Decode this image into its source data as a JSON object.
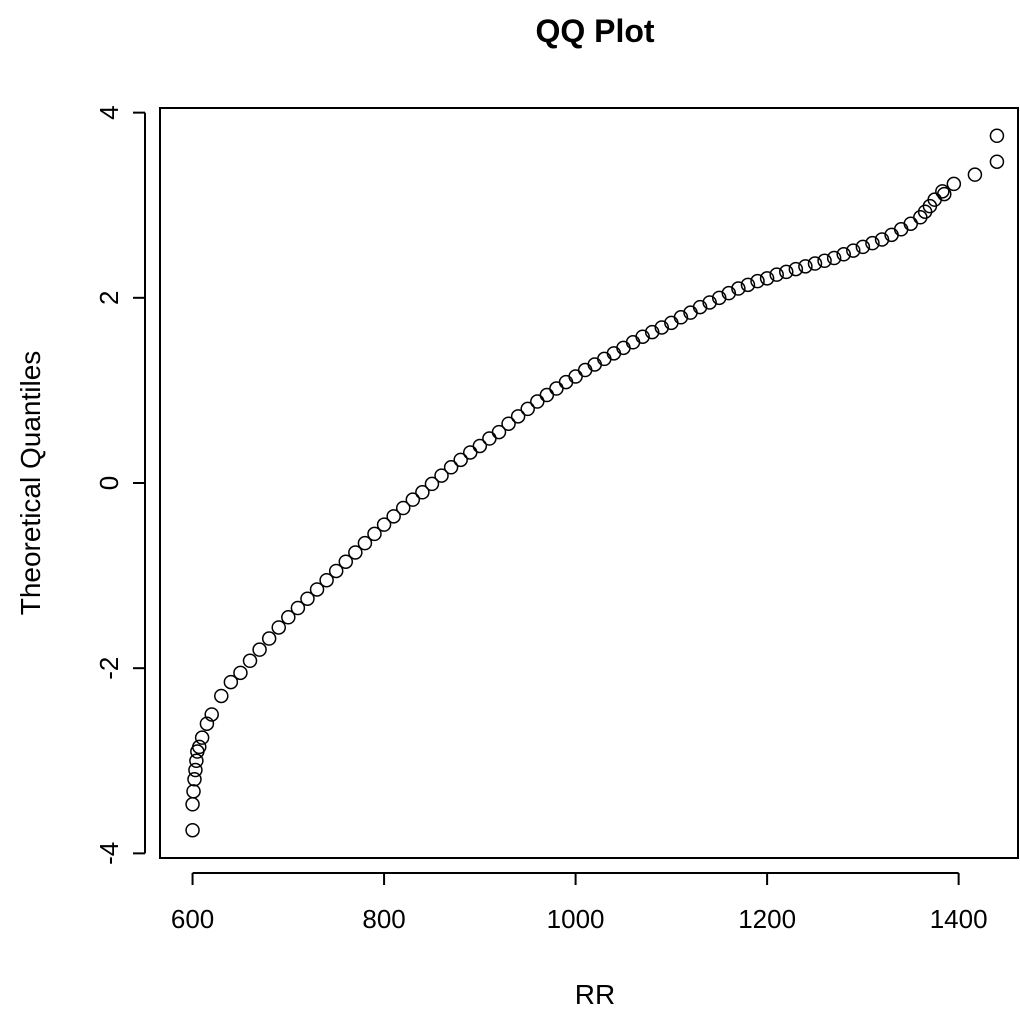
{
  "chart_data": {
    "type": "scatter",
    "title": "QQ Plot",
    "x_label": "RR",
    "y_label": "Theoretical Quantiles",
    "color": "#000000",
    "x": [
      600,
      600,
      601,
      602,
      603,
      604,
      605,
      607,
      610,
      615,
      620,
      630,
      640,
      650,
      660,
      670,
      680,
      690,
      700,
      710,
      720,
      730,
      740,
      750,
      760,
      770,
      780,
      790,
      800,
      810,
      820,
      830,
      840,
      850,
      860,
      870,
      880,
      890,
      900,
      910,
      920,
      930,
      940,
      950,
      960,
      970,
      980,
      990,
      1000,
      1010,
      1020,
      1030,
      1040,
      1050,
      1060,
      1070,
      1080,
      1090,
      1100,
      1110,
      1120,
      1130,
      1140,
      1150,
      1160,
      1170,
      1180,
      1190,
      1200,
      1210,
      1220,
      1230,
      1240,
      1250,
      1260,
      1270,
      1280,
      1290,
      1300,
      1310,
      1320,
      1330,
      1340,
      1350,
      1360,
      1365,
      1370,
      1375,
      1383,
      1385,
      1395,
      1417,
      1440,
      1440
    ],
    "y": [
      -3.75,
      -3.47,
      -3.33,
      -3.2,
      -3.1,
      -3.0,
      -2.9,
      -2.85,
      -2.75,
      -2.6,
      -2.5,
      -2.3,
      -2.15,
      -2.05,
      -1.92,
      -1.8,
      -1.68,
      -1.56,
      -1.45,
      -1.35,
      -1.25,
      -1.15,
      -1.05,
      -0.95,
      -0.85,
      -0.75,
      -0.65,
      -0.55,
      -0.45,
      -0.36,
      -0.27,
      -0.18,
      -0.1,
      -0.01,
      0.08,
      0.17,
      0.25,
      0.33,
      0.4,
      0.48,
      0.55,
      0.64,
      0.72,
      0.8,
      0.88,
      0.95,
      1.02,
      1.09,
      1.15,
      1.22,
      1.28,
      1.34,
      1.4,
      1.46,
      1.52,
      1.58,
      1.63,
      1.68,
      1.73,
      1.79,
      1.84,
      1.9,
      1.95,
      2.0,
      2.05,
      2.1,
      2.14,
      2.18,
      2.21,
      2.25,
      2.28,
      2.31,
      2.34,
      2.37,
      2.4,
      2.43,
      2.47,
      2.51,
      2.55,
      2.59,
      2.63,
      2.68,
      2.74,
      2.8,
      2.87,
      2.93,
      2.99,
      3.06,
      3.15,
      3.12,
      3.23,
      3.33,
      3.47,
      3.75
    ],
    "xlim": [
      566,
      1462
    ],
    "ylim": [
      -4.05,
      4.05
    ],
    "xticks": [
      600,
      800,
      1000,
      1200,
      1400
    ],
    "yticks": [
      -4,
      -2,
      0,
      2,
      4
    ]
  }
}
